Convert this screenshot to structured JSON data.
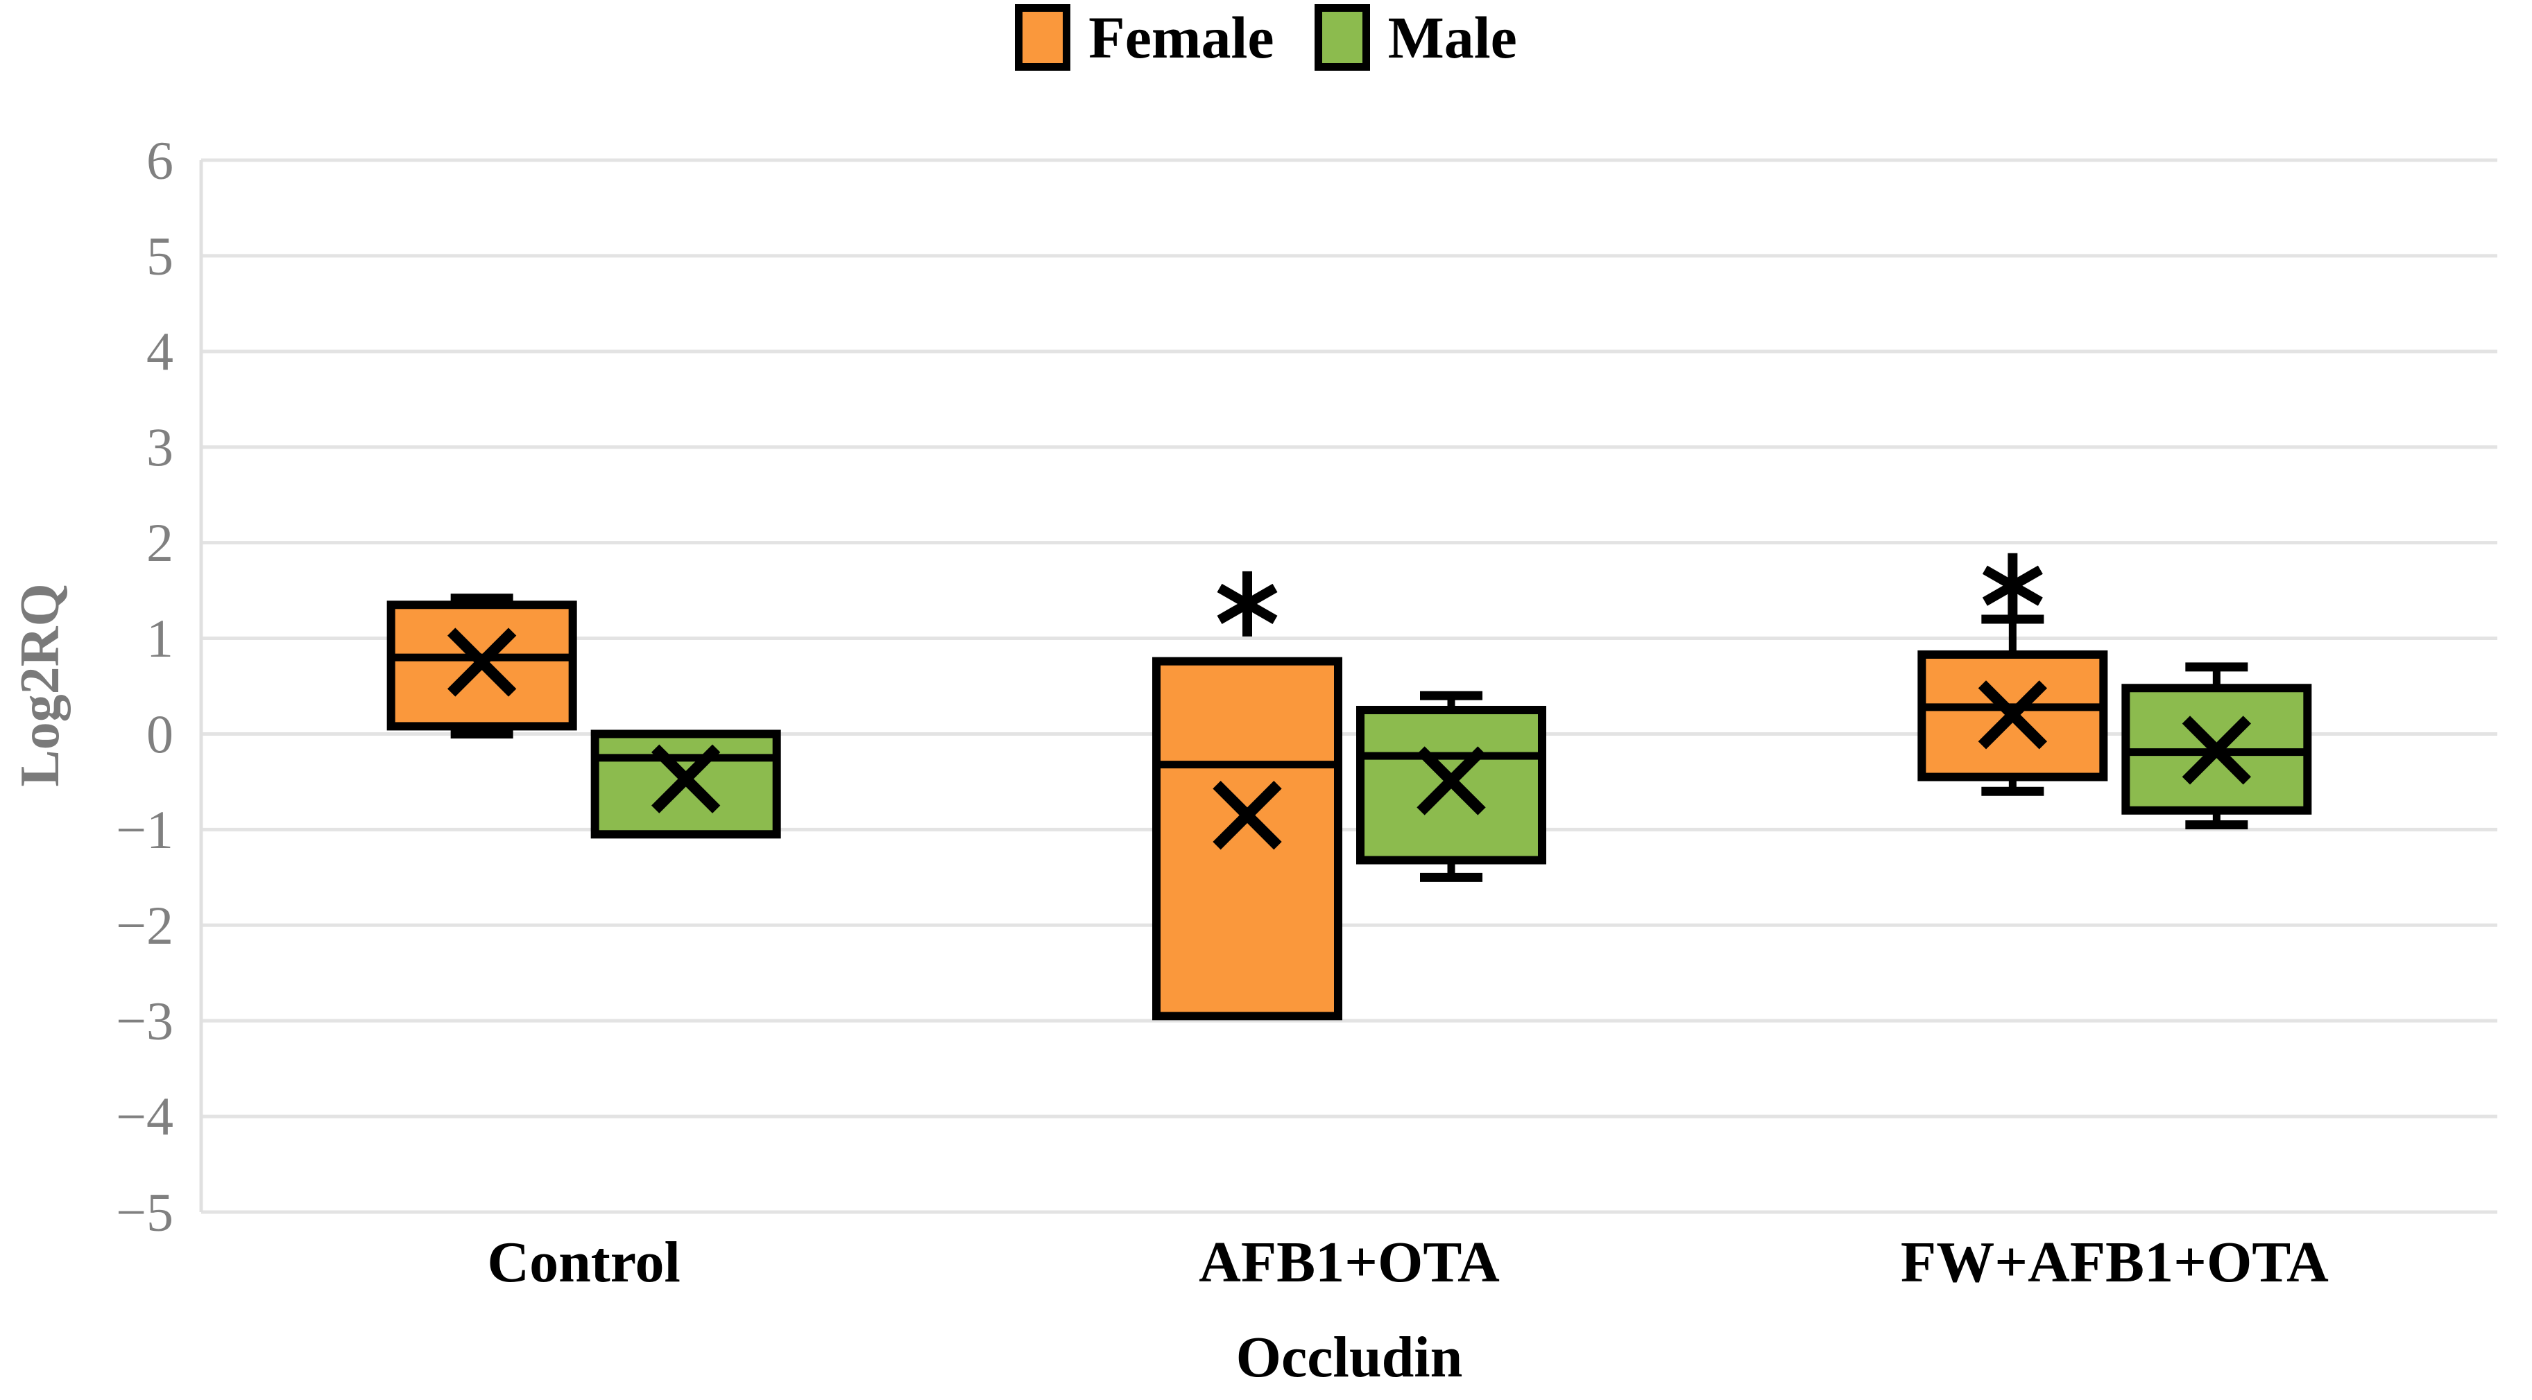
{
  "chart_data": {
    "type": "box",
    "y_axis_title": "Log2RQ",
    "x_axis_title": "Occludin",
    "ylim": [
      -5,
      6
    ],
    "y_ticks": [
      6,
      5,
      4,
      3,
      2,
      1,
      0,
      -1,
      -2,
      -3,
      -4,
      -5
    ],
    "grid": "horizontal",
    "gridline_color": "#e3e3e3",
    "axis_line_color": "#e0e0e0",
    "tick_label_color": "#808080",
    "box_outline_color": "#000000",
    "significance_marker": "*",
    "categories": [
      "Control",
      "AFB1+OTA",
      "FW+AFB1+OTA"
    ],
    "series": [
      {
        "name": "Female",
        "color": "#FA983C",
        "boxes": [
          {
            "whisker_low": 0.0,
            "q1": 0.08,
            "median": 0.8,
            "q3": 1.35,
            "whisker_high": 1.42,
            "mean": 0.75,
            "significance": null,
            "significance_y": null
          },
          {
            "whisker_low": null,
            "q1": -2.95,
            "median": -0.32,
            "q3": 0.76,
            "whisker_high": null,
            "mean": -0.85,
            "significance": "*",
            "significance_y": 1.36
          },
          {
            "whisker_low": -0.6,
            "q1": -0.45,
            "median": 0.28,
            "q3": 0.83,
            "whisker_high": 1.2,
            "mean": 0.2,
            "significance": "*",
            "significance_y": 1.55
          }
        ]
      },
      {
        "name": "Male",
        "color": "#8CBB4E",
        "boxes": [
          {
            "whisker_low": null,
            "q1": -1.05,
            "median": -0.25,
            "q3": 0.0,
            "whisker_high": null,
            "mean": -0.47,
            "significance": null,
            "significance_y": null
          },
          {
            "whisker_low": -1.5,
            "q1": -1.32,
            "median": -0.23,
            "q3": 0.25,
            "whisker_high": 0.4,
            "mean": -0.49,
            "significance": null,
            "significance_y": null
          },
          {
            "whisker_low": -0.95,
            "q1": -0.8,
            "median": -0.19,
            "q3": 0.48,
            "whisker_high": 0.7,
            "mean": -0.17,
            "significance": null,
            "significance_y": null
          }
        ]
      }
    ]
  }
}
